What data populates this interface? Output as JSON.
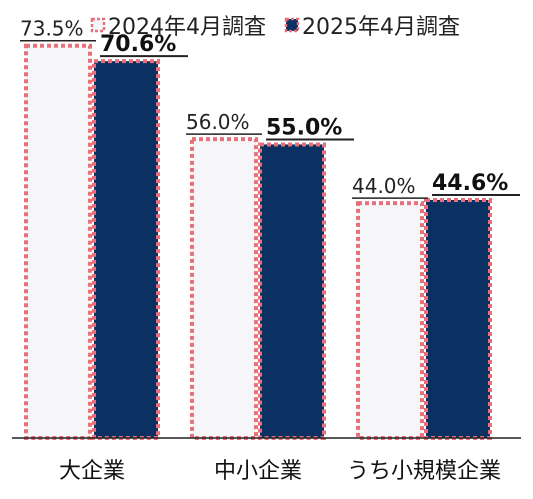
{
  "chart_data": {
    "type": "bar",
    "categories": [
      "大企業",
      "中小企業",
      "うち小規模企業"
    ],
    "series": [
      {
        "name": "2024年4月調査",
        "values": [
          73.5,
          56.0,
          44.0
        ],
        "value_labels": [
          "73.5%",
          "56.0%",
          "44.0%"
        ],
        "color": "#f6f6f8",
        "border": "#e8707a"
      },
      {
        "name": "2025年4月調査",
        "values": [
          70.6,
          55.0,
          44.6
        ],
        "value_labels": [
          "70.6%",
          "55.0%",
          "44.6%"
        ],
        "color": "#0b3062",
        "border": "#e8707a"
      }
    ],
    "ylim": [
      0,
      80
    ],
    "legend": "top",
    "grid": false
  }
}
